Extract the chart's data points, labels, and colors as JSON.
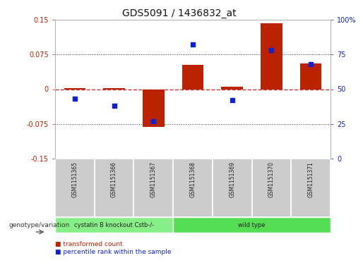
{
  "title": "GDS5091 / 1436832_at",
  "samples": [
    "GSM1151365",
    "GSM1151366",
    "GSM1151367",
    "GSM1151368",
    "GSM1151369",
    "GSM1151370",
    "GSM1151371"
  ],
  "bar_values": [
    0.002,
    0.003,
    -0.082,
    0.052,
    0.005,
    0.142,
    0.055
  ],
  "dot_values": [
    43,
    38,
    27,
    82,
    42,
    78,
    68
  ],
  "ylim_left": [
    -0.15,
    0.15
  ],
  "ylim_right": [
    0,
    100
  ],
  "yticks_left": [
    -0.15,
    -0.075,
    0,
    0.075,
    0.15
  ],
  "ytick_labels_left": [
    "-0.15",
    "-0.075",
    "0",
    "0.075",
    "0.15"
  ],
  "yticks_right": [
    0,
    25,
    50,
    75,
    100
  ],
  "ytick_labels_right": [
    "0",
    "25",
    "50",
    "75",
    "100%"
  ],
  "bar_color": "#bb2200",
  "dot_color": "#1122cc",
  "dashed_line_color": "#cc3333",
  "dotted_line_color": "#333333",
  "groups": [
    {
      "label": "cystatin B knockout Cstb-/-",
      "samples": [
        0,
        1,
        2
      ],
      "color": "#88ee88"
    },
    {
      "label": "wild type",
      "samples": [
        3,
        4,
        5,
        6
      ],
      "color": "#55dd55"
    }
  ],
  "genotype_label": "genotype/variation",
  "legend_bar_label": "transformed count",
  "legend_dot_label": "percentile rank within the sample",
  "bar_width": 0.55,
  "tick_label_fontsize": 7,
  "title_fontsize": 10,
  "bg_color": "#ffffff",
  "plot_bg_color": "#ffffff",
  "sample_box_color": "#cccccc"
}
